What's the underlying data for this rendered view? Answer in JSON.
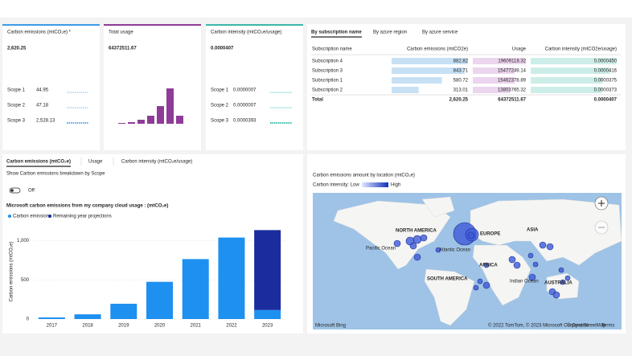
{
  "cards": [
    {
      "title": "Carbon emissions (mtCO₂e) *",
      "value": "2,620.25",
      "scopes": [
        {
          "label": "Scope 1",
          "value": "44.95"
        },
        {
          "label": "Scope 2",
          "value": "47.18"
        },
        {
          "label": "Scope 3",
          "value": "2,528.13"
        }
      ]
    },
    {
      "title": "Total usage",
      "value": "64372511.67",
      "bars": [
        1,
        2,
        5,
        10,
        22,
        44,
        10
      ]
    },
    {
      "title": "Carbon intensity (mtCO₂e/usage)",
      "value": "0.0000407",
      "scopes": [
        {
          "label": "Scope 1",
          "value": "0.0000007"
        },
        {
          "label": "Scope 2",
          "value": "0.0000007"
        },
        {
          "label": "Scope 3",
          "value": "0.0000393"
        }
      ]
    }
  ],
  "table": {
    "tabs": [
      "By subscription name",
      "By azure region",
      "By azure service"
    ],
    "columns": [
      "Subscription name",
      "Carbon emissions (mtCO2e)",
      "Usage",
      "Carbon intensity (mtCO2e/usage)"
    ],
    "rows": [
      [
        "Subscription 4",
        "882.82",
        "19609118.32",
        "0.0000450"
      ],
      [
        "Subscription 3",
        "843.71",
        "15477249.14",
        "0.0000416"
      ],
      [
        "Subscription 1",
        "580.72",
        "15462378.89",
        "0.0000375"
      ],
      [
        "Subscription 2",
        "313.01",
        "13803765.32",
        "0.0000373"
      ]
    ],
    "total": [
      "Total",
      "2,620.25",
      "64372511.67",
      "0.0000407"
    ]
  },
  "emissions_panel": {
    "tabs": [
      "Carbon emissions (mtCO₂e)",
      "Usage",
      "Carbon intensity (mtCO₂e/usage)"
    ],
    "toggle_caption": "Show Carbon emissions breakdown by Scope",
    "toggle_state": "Off",
    "chart_data": {
      "type": "bar",
      "title": "Microsoft carbon emissions from my company cloud usage : (mtCO₂e)",
      "y_label": "Carbon emissions (mtCO₂e)",
      "categories": [
        "2017",
        "2018",
        "2019",
        "2020",
        "2021",
        "2022",
        "2023"
      ],
      "series": [
        {
          "name": "Carbon emissions",
          "color": "#1e90f0",
          "values": [
            20,
            60,
            195,
            475,
            765,
            1040,
            115
          ]
        },
        {
          "name": "Remaining year projections",
          "color": "#1a2c9e",
          "values": [
            null,
            null,
            null,
            null,
            null,
            null,
            1020
          ]
        }
      ],
      "stacked": true,
      "ylim": [
        0,
        1200
      ],
      "yticks": [
        0,
        500,
        {
          "value": 1000,
          "label": "1,000"
        }
      ],
      "grid": true
    }
  },
  "map_panel": {
    "title": "Carbon emissions amount by location (mtCO₂e)",
    "legend_low": "Carbon intensity: Low",
    "legend_high": "High",
    "regions": [
      "NORTH AMERICA",
      "EUROPE",
      "ASIA",
      "AFRICA",
      "SOUTH AMERICA",
      "AUSTRALIA",
      "Pacific Ocean",
      "Atlantic Ocean",
      "Indian Ocean"
    ],
    "attribution": "© 2022 TomTom, © 2023 Microsoft Corporation",
    "osm": "© OpenStreetMap",
    "terms": "Terms",
    "brand": "Microsoft Bing"
  }
}
